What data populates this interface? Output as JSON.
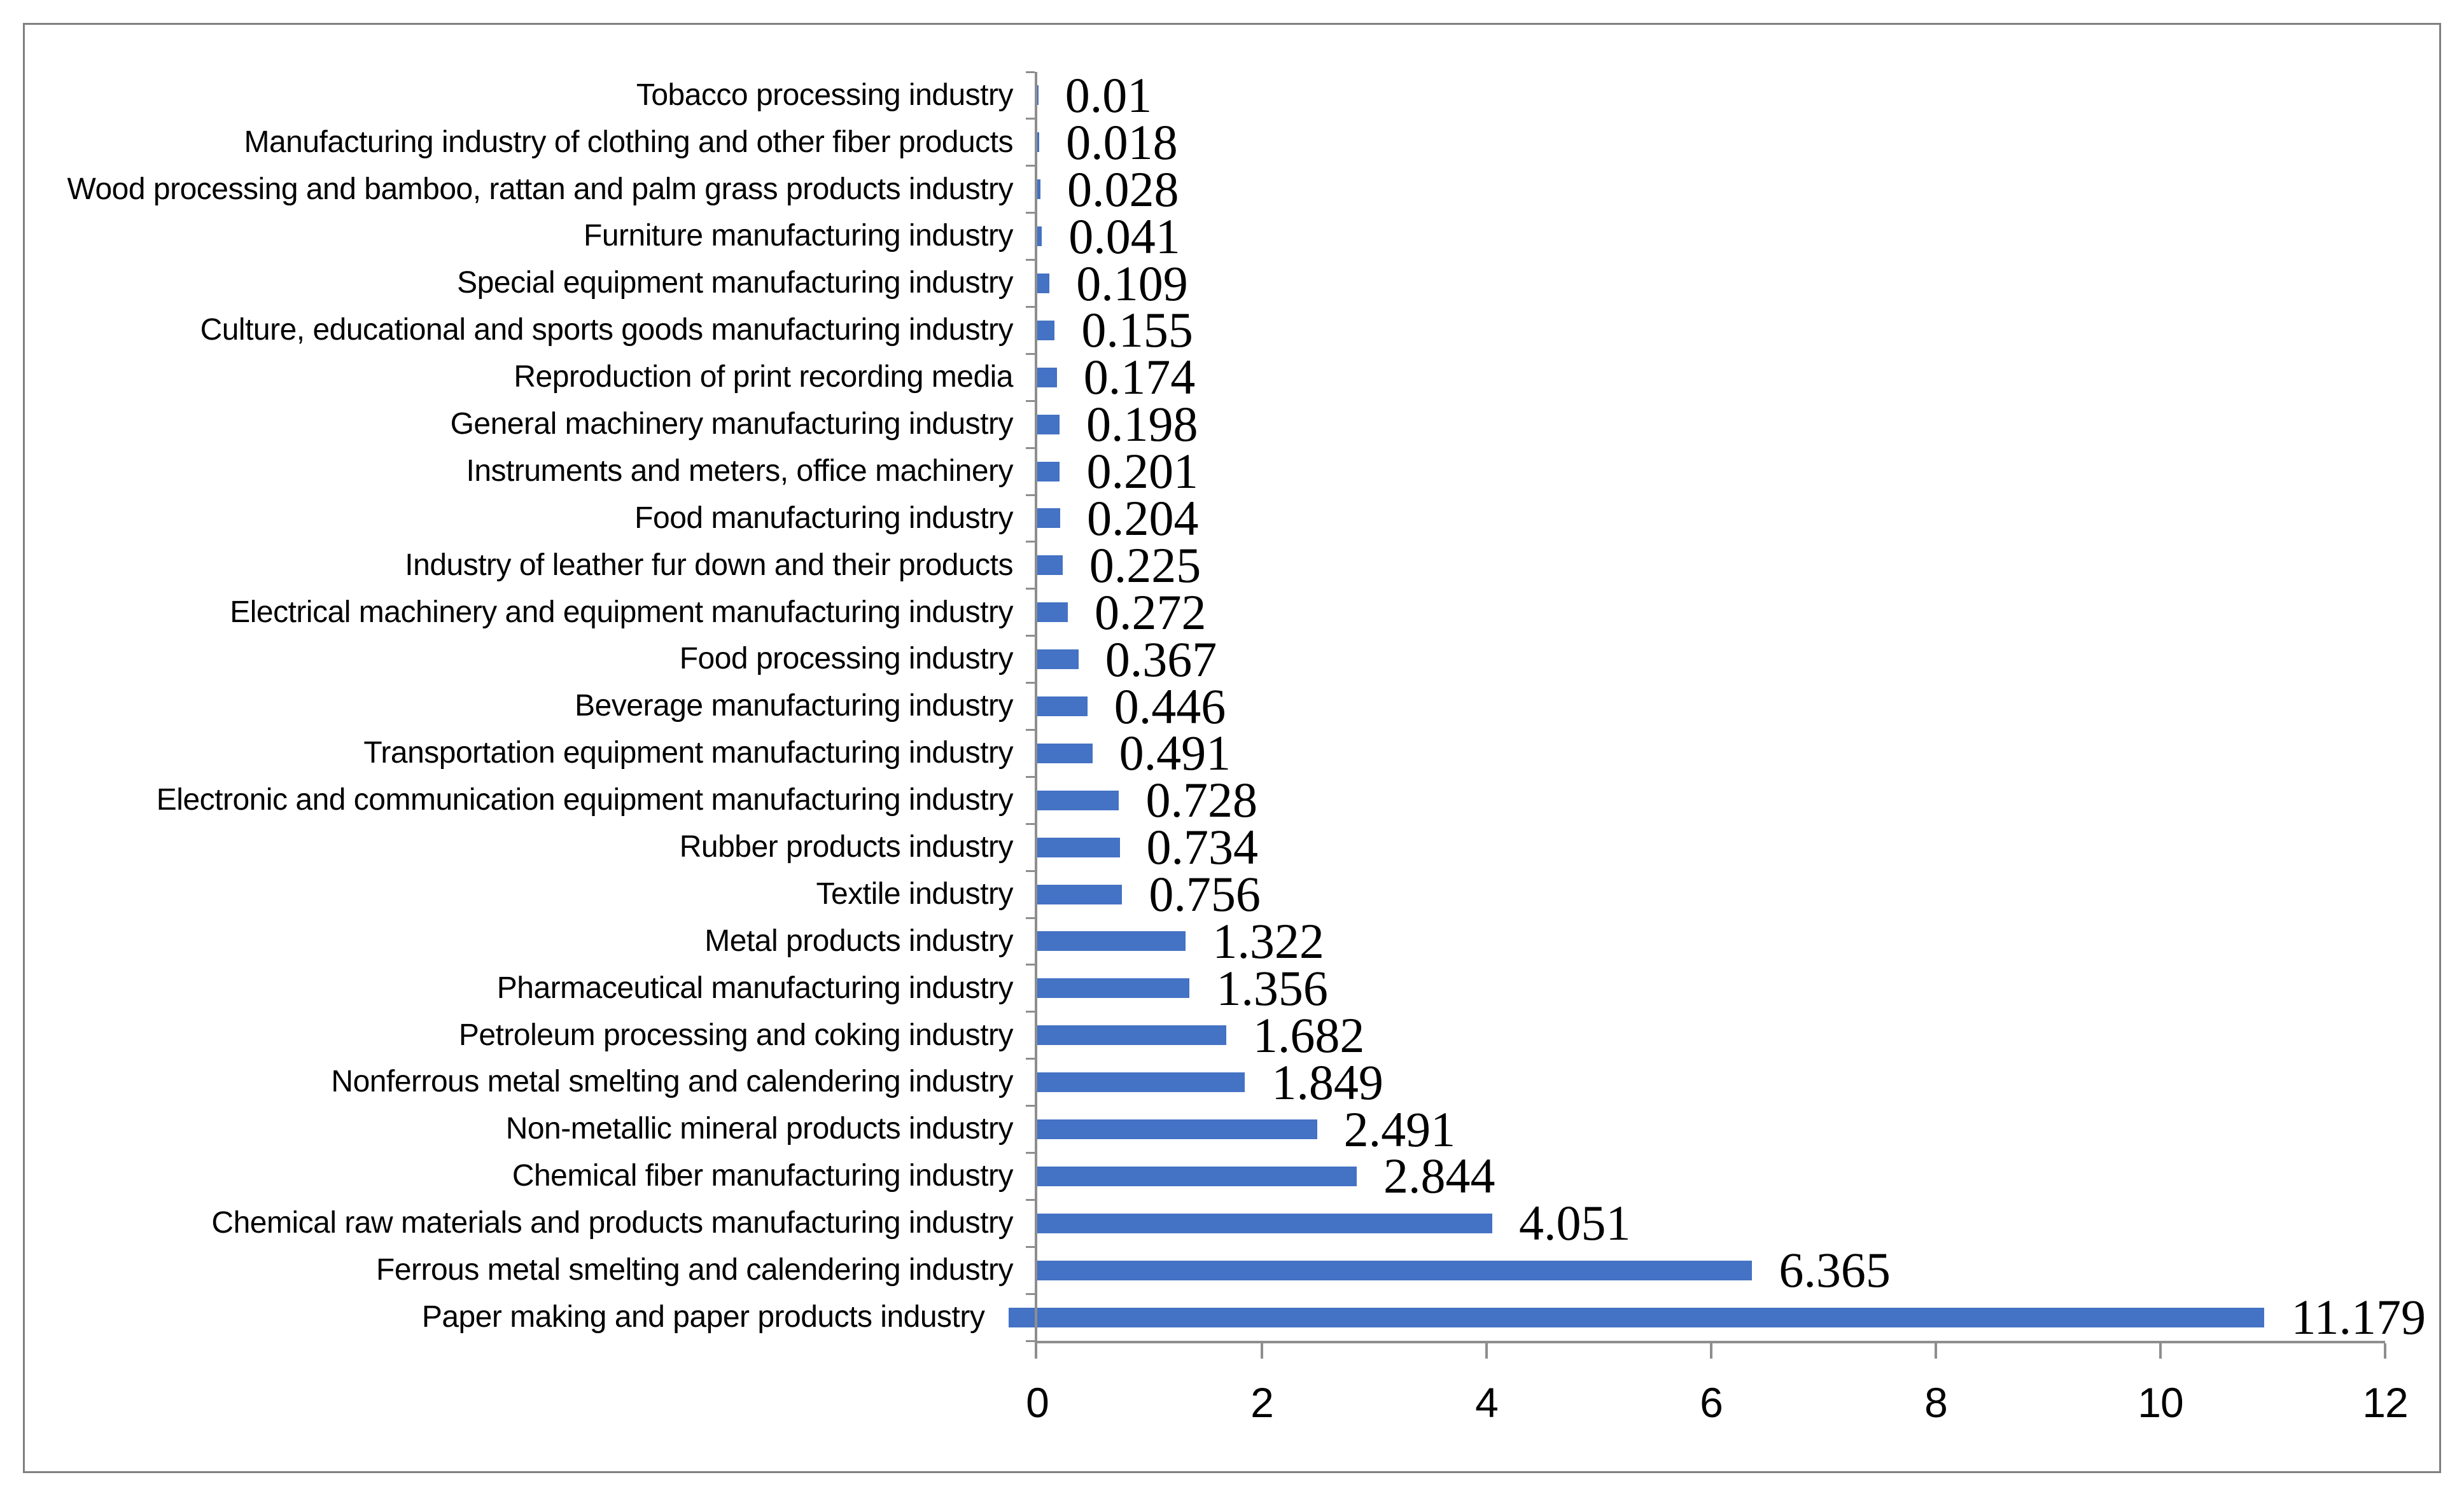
{
  "chart_data": {
    "type": "bar",
    "orientation": "horizontal",
    "title": "",
    "xlabel": "",
    "ylabel": "",
    "grid": false,
    "legend": false,
    "xlim": [
      0,
      12
    ],
    "x_ticks": [
      0,
      2,
      4,
      6,
      8,
      10,
      12
    ],
    "bar_color": "#4472C4",
    "axis_color": "#8E8E8E",
    "frame_border_color": "#7F7F7F",
    "text_color": "#000000",
    "categories": [
      "Tobacco processing industry",
      "Manufacturing industry of clothing and other fiber products",
      "Wood processing and bamboo, rattan and palm grass products industry",
      "Furniture manufacturing industry",
      "Special equipment manufacturing industry",
      "Culture, educational and sports goods manufacturing industry",
      "Reproduction of print recording media",
      "General machinery manufacturing industry",
      "Instruments and meters, office machinery",
      "Food manufacturing industry",
      "Industry of leather fur down and their products",
      "Electrical machinery and equipment manufacturing industry",
      "Food processing industry",
      "Beverage manufacturing industry",
      "Transportation equipment manufacturing industry",
      "Electronic and communication equipment manufacturing industry",
      "Rubber products industry",
      "Textile industry",
      "Metal products industry",
      "Pharmaceutical manufacturing industry",
      "Petroleum processing and coking industry",
      "Nonferrous metal smelting and calendering industry",
      "Non-metallic mineral products industry",
      "Chemical fiber manufacturing industry",
      "Chemical raw materials and products manufacturing industry",
      "Ferrous metal smelting and calendering industry",
      "Paper making and paper products industry"
    ],
    "values": [
      0.01,
      0.018,
      0.028,
      0.041,
      0.109,
      0.155,
      0.174,
      0.198,
      0.201,
      0.204,
      0.225,
      0.272,
      0.367,
      0.446,
      0.491,
      0.728,
      0.734,
      0.756,
      1.322,
      1.356,
      1.682,
      1.849,
      2.491,
      2.844,
      4.051,
      6.365,
      11.179
    ],
    "data_labels": [
      "0.01",
      "0.018",
      "0.028",
      "0.041",
      "0.109",
      "0.155",
      "0.174",
      "0.198",
      "0.201",
      "0.204",
      "0.225",
      "0.272",
      "0.367",
      "0.446",
      "0.491",
      "0.728",
      "0.734",
      "0.756",
      "1.322",
      "1.356",
      "1.682",
      "1.849",
      "2.491",
      "2.844",
      "4.051",
      "6.365",
      "11.179"
    ],
    "x_tick_labels": [
      "0",
      "2",
      "4",
      "6",
      "8",
      "10",
      "12"
    ]
  }
}
